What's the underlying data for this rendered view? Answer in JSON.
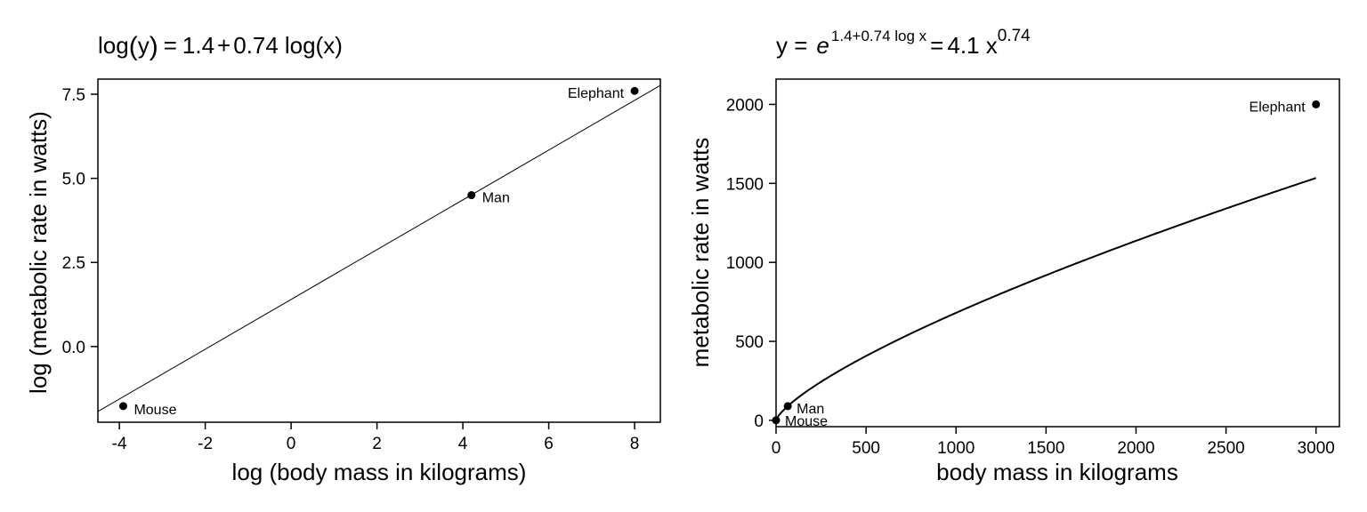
{
  "chart_data": [
    {
      "type": "scatter",
      "title": "log(y) = 1.4 + 0.74 log(x)",
      "title_parts": {
        "lhs": "log",
        "paren_open": "(",
        "y": "y",
        "paren_close": ")",
        "eq": "=",
        "intercept": "1.4",
        "plus": "+",
        "slope": "0.74",
        "rhs_fn": "log",
        "x_arg": "(x)"
      },
      "xlabel": "log (body mass in kilograms)",
      "ylabel": "log (metabolic rate in watts)",
      "xlim": [
        -4.5,
        8.6
      ],
      "ylim": [
        -2.25,
        7.95
      ],
      "xticks": [
        -4,
        -2,
        0,
        2,
        4,
        6,
        8
      ],
      "xtick_labels": [
        "-4",
        "-2",
        "0",
        "2",
        "4",
        "6",
        "8"
      ],
      "yticks": [
        0.0,
        2.5,
        5.0,
        7.5
      ],
      "ytick_labels": [
        "0.0",
        "2.5",
        "5.0",
        "7.5"
      ],
      "points": [
        {
          "label": "Mouse",
          "x": -3.91,
          "y": -1.77
        },
        {
          "label": "Man",
          "x": 4.2,
          "y": 4.5
        },
        {
          "label": "Elephant",
          "x": 8.0,
          "y": 7.6
        }
      ],
      "fit_line": {
        "intercept": 1.4,
        "slope": 0.74
      },
      "grid": false
    },
    {
      "type": "scatter",
      "title": "y = e^(1.4+0.74 log x) = 4.1 x^0.74",
      "title_parts": {
        "lhs": "y =",
        "base": "e",
        "exponent": "1.4+0.74 log x",
        "eq": "=",
        "coef": "4.1 x",
        "power": "0.74"
      },
      "xlabel": "body mass in kilograms",
      "ylabel": "metabolic rate in watts",
      "xlim": [
        0,
        3130
      ],
      "ylim": [
        -40,
        2160
      ],
      "xticks": [
        0,
        500,
        1000,
        1500,
        2000,
        2500,
        3000
      ],
      "xtick_labels": [
        "0",
        "500",
        "1000",
        "1500",
        "2000",
        "2500",
        "3000"
      ],
      "yticks": [
        0,
        500,
        1000,
        1500,
        2000
      ],
      "ytick_labels": [
        "0",
        "500",
        "1000",
        "1500",
        "2000"
      ],
      "points": [
        {
          "label": "Mouse",
          "x": 0.02,
          "y": 0.17
        },
        {
          "label": "Man",
          "x": 65,
          "y": 90
        },
        {
          "label": "Elephant",
          "x": 3000,
          "y": 2000
        }
      ],
      "fit_curve": {
        "coefficient": 4.1,
        "exponent": 0.74
      },
      "grid": false
    }
  ]
}
